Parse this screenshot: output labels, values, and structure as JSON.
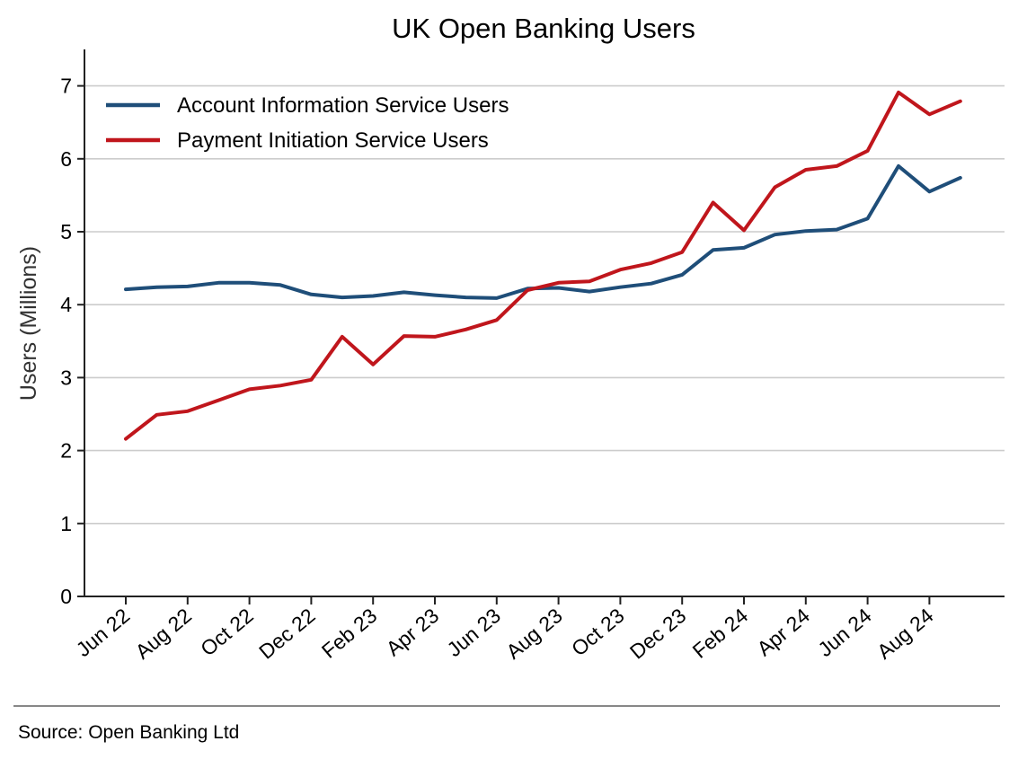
{
  "chart_data": {
    "type": "line",
    "title": "UK Open Banking Users",
    "xlabel": "",
    "ylabel": "Users (Millions)",
    "ylim": [
      0,
      7.5
    ],
    "yticks": [
      0,
      1,
      2,
      3,
      4,
      5,
      6,
      7
    ],
    "grid": "horizontal",
    "legend_position": "top-left",
    "categories": [
      "Jun 22",
      "Jul 22",
      "Aug 22",
      "Sep 22",
      "Oct 22",
      "Nov 22",
      "Dec 22",
      "Jan 23",
      "Feb 23",
      "Mar 23",
      "Apr 23",
      "May 23",
      "Jun 23",
      "Jul 23",
      "Aug 23",
      "Sep 23",
      "Oct 23",
      "Nov 23",
      "Dec 23",
      "Jan 24",
      "Feb 24",
      "Mar 24",
      "Apr 24",
      "May 24",
      "Jun 24",
      "Jul 24",
      "Aug 24",
      "Sep 24"
    ],
    "x_tick_labels": [
      "Jun 22",
      "Aug 22",
      "Oct 22",
      "Dec 22",
      "Feb 23",
      "Apr 23",
      "Jun 23",
      "Aug 23",
      "Oct 23",
      "Dec 23",
      "Feb 24",
      "Apr 24",
      "Jun 24",
      "Aug 24"
    ],
    "series": [
      {
        "name": "Account Information Service Users",
        "color": "#1f4e79",
        "values": [
          4.21,
          4.24,
          4.25,
          4.3,
          4.3,
          4.27,
          4.14,
          4.1,
          4.12,
          4.17,
          4.13,
          4.1,
          4.09,
          4.22,
          4.23,
          4.18,
          4.24,
          4.29,
          4.41,
          4.75,
          4.78,
          4.96,
          5.01,
          5.03,
          5.18,
          5.9,
          5.55,
          5.74
        ]
      },
      {
        "name": "Payment Initiation Service Users",
        "color": "#c0161c",
        "values": [
          2.16,
          2.49,
          2.54,
          2.69,
          2.84,
          2.89,
          2.97,
          3.56,
          3.18,
          3.57,
          3.56,
          3.66,
          3.79,
          4.2,
          4.3,
          4.32,
          4.48,
          4.57,
          4.72,
          5.4,
          5.02,
          5.61,
          5.85,
          5.9,
          6.11,
          6.91,
          6.61,
          6.79
        ]
      }
    ]
  },
  "footer": {
    "source": "Source: Open Banking Ltd"
  }
}
